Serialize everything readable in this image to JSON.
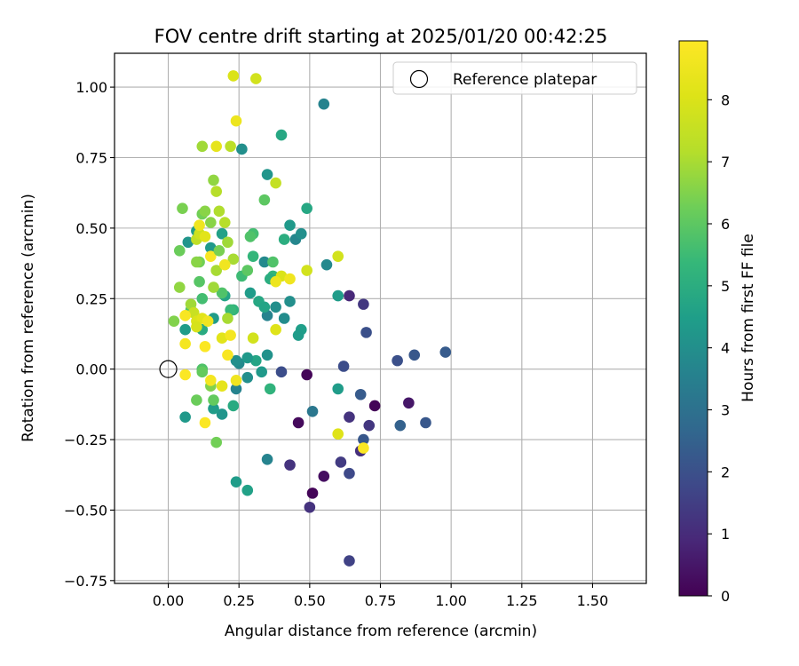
{
  "chart_data": {
    "type": "scatter",
    "title": "FOV centre drift starting at 2025/01/20 00:42:25",
    "xlabel": "Angular distance from reference (arcmin)",
    "ylabel": "Rotation from reference (arcmin)",
    "xlim": [
      -0.19,
      1.69
    ],
    "ylim": [
      -0.76,
      1.12
    ],
    "x_ticks": [
      "0.00",
      "0.25",
      "0.50",
      "0.75",
      "1.00",
      "1.25",
      "1.50"
    ],
    "y_ticks": [
      "−0.75",
      "−0.50",
      "−0.25",
      "0.00",
      "0.25",
      "0.50",
      "0.75",
      "1.00"
    ],
    "grid": true,
    "legend": {
      "placement": "top-right",
      "entries": [
        "Reference platepar"
      ]
    },
    "reference_point": {
      "x": 0.0,
      "y": 0.0,
      "label": "Reference platepar"
    },
    "colorbar": {
      "label": "Hours from first FF file",
      "colormap": "viridis",
      "range": [
        0,
        8.95
      ],
      "ticks": [
        "0",
        "1",
        "2",
        "3",
        "4",
        "5",
        "6",
        "7",
        "8"
      ]
    },
    "series": [
      {
        "points": [
          {
            "x": 0.51,
            "y": -0.44,
            "h": 0.1
          },
          {
            "x": 0.49,
            "y": -0.02,
            "h": 0.1
          },
          {
            "x": 0.46,
            "y": -0.19,
            "h": 0.2
          },
          {
            "x": 0.55,
            "y": -0.38,
            "h": 0.3
          },
          {
            "x": 0.73,
            "y": -0.13,
            "h": 0.1
          },
          {
            "x": 0.85,
            "y": -0.12,
            "h": 0.5
          },
          {
            "x": 0.5,
            "y": -0.49,
            "h": 1.2
          },
          {
            "x": 0.64,
            "y": 0.26,
            "h": 0.9
          },
          {
            "x": 0.69,
            "y": 0.23,
            "h": 1.3
          },
          {
            "x": 0.43,
            "y": -0.34,
            "h": 1.2
          },
          {
            "x": 0.61,
            "y": -0.33,
            "h": 1.4
          },
          {
            "x": 0.64,
            "y": -0.17,
            "h": 1.2
          },
          {
            "x": 0.68,
            "y": -0.29,
            "h": 1.1
          },
          {
            "x": 0.71,
            "y": -0.2,
            "h": 1.3
          },
          {
            "x": 0.64,
            "y": -0.68,
            "h": 1.6
          },
          {
            "x": 0.64,
            "y": -0.37,
            "h": 1.8
          },
          {
            "x": 0.62,
            "y": 0.01,
            "h": 1.9
          },
          {
            "x": 0.7,
            "y": 0.13,
            "h": 2.0
          },
          {
            "x": 0.4,
            "y": -0.01,
            "h": 1.9
          },
          {
            "x": 0.69,
            "y": -0.25,
            "h": 2.2
          },
          {
            "x": 0.68,
            "y": -0.09,
            "h": 2.3
          },
          {
            "x": 0.82,
            "y": -0.2,
            "h": 2.5
          },
          {
            "x": 0.81,
            "y": 0.03,
            "h": 2.0
          },
          {
            "x": 0.87,
            "y": 0.05,
            "h": 2.2
          },
          {
            "x": 0.91,
            "y": -0.19,
            "h": 2.2
          },
          {
            "x": 0.98,
            "y": 0.06,
            "h": 2.3
          },
          {
            "x": 0.51,
            "y": -0.15,
            "h": 3.2
          },
          {
            "x": 0.35,
            "y": -0.32,
            "h": 3.6
          },
          {
            "x": 0.55,
            "y": 0.94,
            "h": 3.6
          },
          {
            "x": 0.56,
            "y": 0.37,
            "h": 3.8
          },
          {
            "x": 0.6,
            "y": 0.26,
            "h": 4.4
          },
          {
            "x": 0.6,
            "y": -0.07,
            "h": 4.4
          },
          {
            "x": 0.24,
            "y": -0.4,
            "h": 4.4
          },
          {
            "x": 0.28,
            "y": -0.43,
            "h": 4.6
          },
          {
            "x": 0.25,
            "y": 0.02,
            "h": 3.8
          },
          {
            "x": 0.24,
            "y": -0.07,
            "h": 3.6
          },
          {
            "x": 0.26,
            "y": 0.78,
            "h": 4.0
          },
          {
            "x": 0.35,
            "y": 0.69,
            "h": 4.2
          },
          {
            "x": 0.4,
            "y": 0.83,
            "h": 4.8
          },
          {
            "x": 0.45,
            "y": 0.46,
            "h": 3.7
          },
          {
            "x": 0.43,
            "y": 0.51,
            "h": 4.3
          },
          {
            "x": 0.47,
            "y": 0.48,
            "h": 4.0
          },
          {
            "x": 0.49,
            "y": 0.57,
            "h": 4.8
          },
          {
            "x": 0.41,
            "y": 0.46,
            "h": 5.0
          },
          {
            "x": 0.34,
            "y": 0.38,
            "h": 3.8
          },
          {
            "x": 0.35,
            "y": 0.19,
            "h": 3.6
          },
          {
            "x": 0.38,
            "y": 0.22,
            "h": 4.0
          },
          {
            "x": 0.41,
            "y": 0.18,
            "h": 3.9
          },
          {
            "x": 0.43,
            "y": 0.24,
            "h": 4.0
          },
          {
            "x": 0.47,
            "y": 0.14,
            "h": 4.5
          },
          {
            "x": 0.46,
            "y": 0.12,
            "h": 4.4
          },
          {
            "x": 0.35,
            "y": 0.05,
            "h": 4.1
          },
          {
            "x": 0.33,
            "y": -0.01,
            "h": 4.3
          },
          {
            "x": 0.31,
            "y": 0.03,
            "h": 4.7
          },
          {
            "x": 0.28,
            "y": -0.03,
            "h": 4.0
          },
          {
            "x": 0.28,
            "y": 0.04,
            "h": 4.3
          },
          {
            "x": 0.36,
            "y": -0.07,
            "h": 5.2
          },
          {
            "x": 0.29,
            "y": 0.27,
            "h": 4.4
          },
          {
            "x": 0.32,
            "y": 0.24,
            "h": 4.8
          },
          {
            "x": 0.34,
            "y": 0.22,
            "h": 4.7
          },
          {
            "x": 0.24,
            "y": 0.03,
            "h": 4.0
          },
          {
            "x": 0.23,
            "y": -0.13,
            "h": 4.9
          },
          {
            "x": 0.19,
            "y": -0.16,
            "h": 4.2
          },
          {
            "x": 0.16,
            "y": -0.14,
            "h": 4.4
          },
          {
            "x": 0.06,
            "y": -0.17,
            "h": 4.3
          },
          {
            "x": 0.06,
            "y": 0.14,
            "h": 4.4
          },
          {
            "x": 0.16,
            "y": 0.18,
            "h": 4.4
          },
          {
            "x": 0.12,
            "y": 0.14,
            "h": 4.9
          },
          {
            "x": 0.19,
            "y": 0.48,
            "h": 4.6
          },
          {
            "x": 0.07,
            "y": 0.45,
            "h": 4.2
          },
          {
            "x": 0.1,
            "y": 0.49,
            "h": 4.4
          },
          {
            "x": 0.15,
            "y": 0.43,
            "h": 4.3
          },
          {
            "x": 0.2,
            "y": 0.26,
            "h": 4.7
          },
          {
            "x": 0.23,
            "y": 0.21,
            "h": 5.2
          },
          {
            "x": 0.22,
            "y": 0.21,
            "h": 5.4
          },
          {
            "x": 0.26,
            "y": 0.33,
            "h": 5.5
          },
          {
            "x": 0.3,
            "y": 0.4,
            "h": 5.3
          },
          {
            "x": 0.3,
            "y": 0.48,
            "h": 5.6
          },
          {
            "x": 0.37,
            "y": 0.38,
            "h": 5.8
          },
          {
            "x": 0.37,
            "y": 0.33,
            "h": 5.3
          },
          {
            "x": 0.36,
            "y": 0.32,
            "h": 5.0
          },
          {
            "x": 0.29,
            "y": 0.47,
            "h": 5.8
          },
          {
            "x": 0.34,
            "y": 0.6,
            "h": 6.0
          },
          {
            "x": 0.28,
            "y": 0.35,
            "h": 6.0
          },
          {
            "x": 0.19,
            "y": 0.27,
            "h": 5.8
          },
          {
            "x": 0.08,
            "y": 0.21,
            "h": 5.8
          },
          {
            "x": 0.11,
            "y": 0.31,
            "h": 5.9
          },
          {
            "x": 0.12,
            "y": 0.25,
            "h": 5.6
          },
          {
            "x": 0.1,
            "y": -0.11,
            "h": 6.2
          },
          {
            "x": 0.12,
            "y": 0.0,
            "h": 5.8
          },
          {
            "x": 0.16,
            "y": -0.11,
            "h": 6.1
          },
          {
            "x": 0.17,
            "y": -0.26,
            "h": 6.3
          },
          {
            "x": 0.15,
            "y": -0.06,
            "h": 6.5
          },
          {
            "x": 0.12,
            "y": -0.01,
            "h": 6.1
          },
          {
            "x": 0.04,
            "y": 0.42,
            "h": 6.2
          },
          {
            "x": 0.05,
            "y": 0.57,
            "h": 6.4
          },
          {
            "x": 0.04,
            "y": 0.29,
            "h": 6.7
          },
          {
            "x": 0.08,
            "y": 0.23,
            "h": 6.9
          },
          {
            "x": 0.11,
            "y": 0.38,
            "h": 6.3
          },
          {
            "x": 0.1,
            "y": 0.38,
            "h": 6.6
          },
          {
            "x": 0.12,
            "y": 0.55,
            "h": 6.3
          },
          {
            "x": 0.13,
            "y": 0.56,
            "h": 6.6
          },
          {
            "x": 0.15,
            "y": 0.52,
            "h": 6.6
          },
          {
            "x": 0.16,
            "y": 0.29,
            "h": 6.9
          },
          {
            "x": 0.17,
            "y": 0.35,
            "h": 7.0
          },
          {
            "x": 0.16,
            "y": 0.67,
            "h": 6.7
          },
          {
            "x": 0.17,
            "y": 0.63,
            "h": 7.2
          },
          {
            "x": 0.12,
            "y": 0.79,
            "h": 6.9
          },
          {
            "x": 0.21,
            "y": 0.18,
            "h": 7.0
          },
          {
            "x": 0.21,
            "y": 0.45,
            "h": 6.9
          },
          {
            "x": 0.23,
            "y": 0.39,
            "h": 7.0
          },
          {
            "x": 0.2,
            "y": 0.52,
            "h": 7.2
          },
          {
            "x": 0.18,
            "y": 0.56,
            "h": 7.1
          },
          {
            "x": 0.22,
            "y": 0.79,
            "h": 7.3
          },
          {
            "x": 0.31,
            "y": 1.03,
            "h": 7.8
          },
          {
            "x": 0.23,
            "y": 1.04,
            "h": 8.0
          },
          {
            "x": 0.24,
            "y": 0.88,
            "h": 8.5
          },
          {
            "x": 0.17,
            "y": 0.79,
            "h": 8.3
          },
          {
            "x": 0.38,
            "y": 0.66,
            "h": 7.5
          },
          {
            "x": 0.49,
            "y": 0.35,
            "h": 7.8
          },
          {
            "x": 0.6,
            "y": 0.4,
            "h": 7.8
          },
          {
            "x": 0.6,
            "y": -0.23,
            "h": 8.1
          },
          {
            "x": 0.3,
            "y": 0.11,
            "h": 7.8
          },
          {
            "x": 0.38,
            "y": 0.14,
            "h": 8.1
          },
          {
            "x": 0.4,
            "y": 0.33,
            "h": 8.0
          },
          {
            "x": 0.43,
            "y": 0.32,
            "h": 8.6
          },
          {
            "x": 0.38,
            "y": 0.31,
            "h": 8.5
          },
          {
            "x": 0.69,
            "y": -0.28,
            "h": 8.9
          },
          {
            "x": 0.1,
            "y": 0.46,
            "h": 7.4
          },
          {
            "x": 0.11,
            "y": 0.48,
            "h": 7.7
          },
          {
            "x": 0.13,
            "y": 0.47,
            "h": 8.2
          },
          {
            "x": 0.11,
            "y": 0.51,
            "h": 8.6
          },
          {
            "x": 0.09,
            "y": 0.2,
            "h": 7.6
          },
          {
            "x": 0.1,
            "y": 0.17,
            "h": 8.0
          },
          {
            "x": 0.12,
            "y": 0.18,
            "h": 8.2
          },
          {
            "x": 0.14,
            "y": 0.17,
            "h": 8.6
          },
          {
            "x": 0.06,
            "y": 0.19,
            "h": 8.8
          },
          {
            "x": 0.1,
            "y": 0.15,
            "h": 7.9
          },
          {
            "x": 0.15,
            "y": 0.4,
            "h": 8.8
          },
          {
            "x": 0.2,
            "y": 0.37,
            "h": 8.6
          },
          {
            "x": 0.19,
            "y": 0.11,
            "h": 8.2
          },
          {
            "x": 0.22,
            "y": 0.12,
            "h": 8.7
          },
          {
            "x": 0.21,
            "y": 0.05,
            "h": 8.8
          },
          {
            "x": 0.13,
            "y": 0.08,
            "h": 8.9
          },
          {
            "x": 0.06,
            "y": 0.09,
            "h": 8.7
          },
          {
            "x": 0.06,
            "y": -0.02,
            "h": 8.9
          },
          {
            "x": 0.15,
            "y": -0.04,
            "h": 8.7
          },
          {
            "x": 0.19,
            "y": -0.06,
            "h": 8.3
          },
          {
            "x": 0.24,
            "y": -0.04,
            "h": 8.6
          },
          {
            "x": 0.13,
            "y": -0.19,
            "h": 8.9
          },
          {
            "x": 0.02,
            "y": 0.17,
            "h": 6.5
          },
          {
            "x": 0.18,
            "y": 0.42,
            "h": 6.4
          }
        ]
      }
    ]
  }
}
